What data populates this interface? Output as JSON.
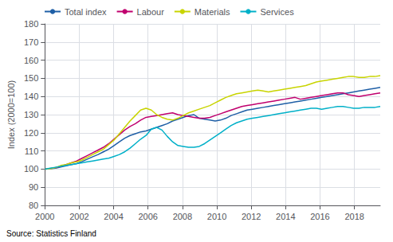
{
  "chart_data": {
    "type": "line",
    "ylabel": "Index (2000=100)",
    "source": "Source: Statistics Finland",
    "x": [
      2000,
      2000.3095238,
      2000.6190476,
      2000.9285714,
      2001.2380952,
      2001.547619,
      2001.8571429,
      2002.1666667,
      2002.4761905,
      2002.7857143,
      2003.0952381,
      2003.4047619,
      2003.7142857,
      2004.0238095,
      2004.3333333,
      2004.6428571,
      2004.952381,
      2005.2619048,
      2005.5714286,
      2005.8809524,
      2006.1904762,
      2006.5,
      2006.8095238,
      2007.1190476,
      2007.4285714,
      2007.7380952,
      2008.047619,
      2008.3571429,
      2008.6666667,
      2008.9761905,
      2009.2857143,
      2009.5952381,
      2009.9047619,
      2010.2142857,
      2010.5238095,
      2010.8333333,
      2011.1428571,
      2011.452381,
      2011.7619048,
      2012.0714286,
      2012.3809524,
      2012.6904762,
      2013,
      2013.3095238,
      2013.6190476,
      2013.9285714,
      2014.2380952,
      2014.547619,
      2014.8571429,
      2015.1666667,
      2015.4761905,
      2015.7857143,
      2016.0952381,
      2016.4047619,
      2016.7142857,
      2017.0238095,
      2017.3333333,
      2017.6428571,
      2017.952381,
      2018.2619048,
      2018.5714286,
      2018.8809524,
      2019.1904762,
      2019.5
    ],
    "series": [
      {
        "name": "Total index",
        "color": "#1f5fa6",
        "values": [
          100.0,
          100.2,
          100.5,
          101.2,
          101.8,
          102.5,
          103.0,
          104.2,
          105.5,
          106.8,
          108.0,
          109.5,
          111.0,
          113.0,
          115.0,
          117.0,
          118.5,
          119.5,
          120.5,
          121.0,
          122.0,
          123.0,
          124.0,
          125.0,
          126.5,
          127.5,
          128.5,
          129.5,
          130.0,
          128.0,
          127.5,
          127.0,
          126.5,
          127.0,
          128.0,
          129.5,
          130.5,
          131.5,
          132.5,
          133.0,
          133.5,
          134.0,
          134.5,
          135.0,
          135.5,
          136.0,
          136.5,
          137.0,
          137.5,
          138.0,
          138.5,
          139.0,
          139.5,
          140.0,
          140.5,
          141.0,
          141.5,
          142.0,
          142.5,
          143.0,
          143.5,
          144.0,
          144.5,
          145.0
        ]
      },
      {
        "name": "Labour",
        "color": "#c0006e",
        "values": [
          100.0,
          100.3,
          100.8,
          101.5,
          102.5,
          103.5,
          104.5,
          106.0,
          107.5,
          109.0,
          110.5,
          112.0,
          114.0,
          116.5,
          119.0,
          121.5,
          123.5,
          125.0,
          127.0,
          128.5,
          129.0,
          129.5,
          130.0,
          130.5,
          131.0,
          130.0,
          129.5,
          129.0,
          128.5,
          128.0,
          128.0,
          128.5,
          129.5,
          130.5,
          131.5,
          132.5,
          133.5,
          134.5,
          135.0,
          135.5,
          136.0,
          136.5,
          137.0,
          137.5,
          138.0,
          138.5,
          139.0,
          139.5,
          138.5,
          139.0,
          139.5,
          140.0,
          140.5,
          141.0,
          141.5,
          142.0,
          142.0,
          141.0,
          140.5,
          140.0,
          140.5,
          141.0,
          141.5,
          142.0
        ]
      },
      {
        "name": "Materials",
        "color": "#c8d400",
        "values": [
          100.0,
          100.2,
          100.8,
          102.0,
          102.5,
          103.5,
          104.0,
          105.0,
          106.5,
          108.0,
          109.5,
          111.0,
          113.5,
          116.0,
          119.5,
          123.0,
          126.5,
          129.5,
          132.5,
          133.5,
          132.5,
          130.0,
          128.5,
          127.5,
          127.0,
          128.0,
          129.5,
          131.0,
          132.0,
          133.0,
          134.0,
          135.0,
          136.5,
          138.0,
          139.5,
          140.5,
          141.5,
          142.0,
          142.5,
          143.0,
          143.5,
          143.0,
          142.5,
          143.0,
          143.5,
          144.0,
          144.5,
          145.0,
          145.5,
          146.0,
          147.0,
          148.0,
          148.5,
          149.0,
          149.5,
          150.0,
          150.5,
          151.0,
          151.0,
          150.5,
          150.5,
          151.0,
          151.0,
          151.5
        ]
      },
      {
        "name": "Services",
        "color": "#00b0c8",
        "values": [
          100.0,
          100.5,
          101.0,
          101.5,
          102.0,
          102.5,
          103.0,
          103.5,
          104.0,
          104.5,
          105.0,
          105.5,
          106.0,
          107.0,
          108.0,
          109.5,
          111.5,
          114.0,
          116.5,
          118.5,
          122.0,
          123.0,
          121.5,
          118.0,
          115.0,
          113.0,
          112.5,
          112.0,
          112.0,
          112.5,
          114.0,
          116.0,
          118.0,
          120.0,
          122.0,
          124.0,
          125.5,
          126.5,
          127.5,
          128.0,
          128.5,
          129.0,
          129.5,
          130.0,
          130.5,
          131.0,
          131.5,
          132.0,
          132.5,
          133.0,
          133.5,
          133.5,
          133.0,
          133.5,
          134.0,
          134.5,
          134.5,
          134.0,
          133.5,
          133.5,
          134.0,
          134.0,
          134.0,
          134.5
        ]
      }
    ],
    "xlim": [
      2000,
      2019.5
    ],
    "xticks": [
      2000,
      2002,
      2004,
      2006,
      2008,
      2010,
      2012,
      2014,
      2016,
      2018
    ],
    "ylim": [
      80,
      180
    ],
    "yticks": [
      80,
      90,
      100,
      110,
      120,
      130,
      140,
      150,
      160,
      170,
      180
    ],
    "grid": true,
    "legend": "upper left"
  }
}
